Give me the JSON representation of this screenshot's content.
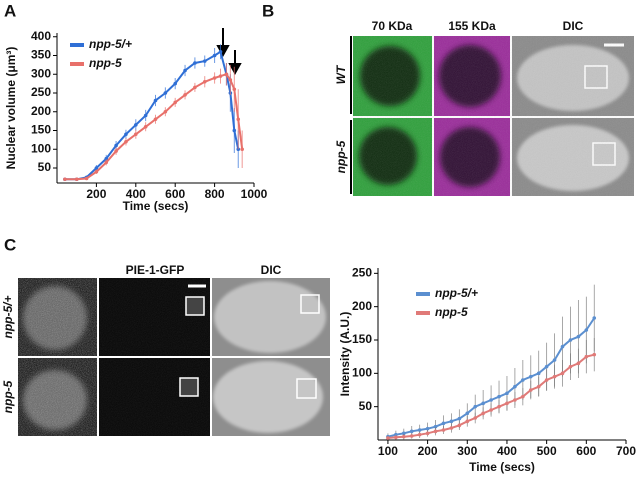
{
  "panel_labels": [
    "A",
    "B",
    "C"
  ],
  "panel_b": {
    "columns": [
      "70 KDa",
      "155 KDa",
      "DIC"
    ],
    "rows": [
      "WT",
      "npp-5"
    ]
  },
  "panel_c": {
    "columns": [
      "PIE-1-GFP",
      "DIC"
    ],
    "rows": [
      "npp-5/+",
      "npp-5"
    ]
  },
  "chart_data": [
    {
      "type": "line",
      "x_label": "Time (secs)",
      "y_label": "Nuclear volume (μm³)",
      "x": [
        40,
        100,
        150,
        200,
        250,
        300,
        350,
        400,
        450,
        500,
        550,
        600,
        650,
        700,
        750,
        800,
        830,
        860,
        880,
        900,
        920,
        940
      ],
      "series": [
        {
          "name": "npp-5/+",
          "color": "#2f6fd6",
          "values": [
            20,
            20,
            25,
            50,
            75,
            110,
            140,
            165,
            190,
            230,
            250,
            275,
            310,
            330,
            335,
            350,
            360,
            300,
            250,
            150,
            100,
            null
          ],
          "errors": [
            3,
            3,
            5,
            8,
            10,
            12,
            12,
            15,
            15,
            15,
            15,
            15,
            15,
            15,
            15,
            20,
            20,
            30,
            50,
            60,
            50,
            null
          ]
        },
        {
          "name": "npp-5",
          "color": "#e8706a",
          "values": [
            20,
            20,
            22,
            40,
            65,
            95,
            120,
            140,
            160,
            180,
            200,
            225,
            245,
            265,
            280,
            290,
            295,
            300,
            285,
            260,
            180,
            100
          ],
          "errors": [
            3,
            3,
            4,
            6,
            8,
            10,
            10,
            12,
            12,
            12,
            12,
            12,
            12,
            12,
            15,
            15,
            20,
            30,
            40,
            60,
            80,
            50
          ]
        }
      ],
      "xlim": [
        0,
        1000
      ],
      "xticks": [
        200,
        400,
        600,
        800,
        1000
      ],
      "ylim": [
        10,
        410
      ],
      "yticks": [
        50,
        100,
        150,
        200,
        250,
        300,
        350,
        400
      ],
      "legend": "upper left"
    },
    {
      "type": "line",
      "x_label": "Time (secs)",
      "y_label": "Intensity (A.U.)",
      "x": [
        100,
        120,
        140,
        160,
        180,
        200,
        220,
        240,
        260,
        280,
        300,
        320,
        340,
        360,
        380,
        400,
        420,
        440,
        460,
        480,
        500,
        520,
        540,
        560,
        580,
        600,
        620
      ],
      "series": [
        {
          "name": "npp-5/+",
          "color": "#5b8fd0",
          "values": [
            5,
            8,
            10,
            13,
            15,
            17,
            20,
            25,
            28,
            32,
            40,
            50,
            55,
            60,
            65,
            70,
            80,
            90,
            95,
            100,
            110,
            120,
            140,
            150,
            155,
            165,
            183
          ],
          "errors": [
            5,
            6,
            7,
            8,
            8,
            9,
            10,
            12,
            12,
            14,
            15,
            18,
            20,
            22,
            24,
            26,
            28,
            30,
            32,
            34,
            36,
            40,
            45,
            50,
            55,
            50,
            50
          ]
        },
        {
          "name": "npp-5",
          "color": "#e07a78",
          "values": [
            3,
            4,
            5,
            6,
            8,
            10,
            13,
            15,
            18,
            22,
            28,
            33,
            40,
            45,
            50,
            55,
            60,
            65,
            75,
            80,
            90,
            95,
            100,
            110,
            115,
            125,
            128
          ],
          "errors": [
            3,
            3,
            4,
            4,
            5,
            5,
            6,
            6,
            7,
            7,
            8,
            8,
            9,
            10,
            10,
            11,
            12,
            13,
            14,
            15,
            16,
            18,
            20,
            20,
            22,
            25,
            25
          ]
        }
      ],
      "xlim": [
        75,
        700
      ],
      "xticks": [
        100,
        200,
        300,
        400,
        500,
        600,
        700
      ],
      "ylim": [
        0,
        258
      ],
      "yticks": [
        50,
        100,
        150,
        200,
        250
      ],
      "legend": "upper left"
    }
  ]
}
